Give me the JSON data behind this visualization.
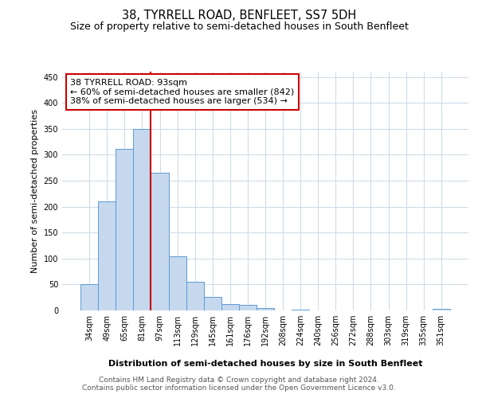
{
  "title": "38, TYRRELL ROAD, BENFLEET, SS7 5DH",
  "subtitle": "Size of property relative to semi-detached houses in South Benfleet",
  "xlabel": "Distribution of semi-detached houses by size in South Benfleet",
  "ylabel": "Number of semi-detached properties",
  "bar_labels": [
    "34sqm",
    "49sqm",
    "65sqm",
    "81sqm",
    "97sqm",
    "113sqm",
    "129sqm",
    "145sqm",
    "161sqm",
    "176sqm",
    "192sqm",
    "208sqm",
    "224sqm",
    "240sqm",
    "256sqm",
    "272sqm",
    "288sqm",
    "303sqm",
    "319sqm",
    "335sqm",
    "351sqm"
  ],
  "bar_values": [
    50,
    210,
    312,
    350,
    265,
    104,
    55,
    26,
    12,
    11,
    5,
    0,
    1,
    0,
    0,
    0,
    0,
    0,
    0,
    0,
    3
  ],
  "bar_color": "#c5d8ed",
  "bar_edge_color": "#5b9bd5",
  "vline_x": 3.5,
  "annotation_title": "38 TYRRELL ROAD: 93sqm",
  "annotation_line1": "← 60% of semi-detached houses are smaller (842)",
  "annotation_line2": "38% of semi-detached houses are larger (534) →",
  "annotation_box_color": "#ffffff",
  "annotation_box_edge": "#cc0000",
  "vline_color": "#cc0000",
  "ylim": [
    0,
    460
  ],
  "yticks": [
    0,
    50,
    100,
    150,
    200,
    250,
    300,
    350,
    400,
    450
  ],
  "footer1": "Contains HM Land Registry data © Crown copyright and database right 2024.",
  "footer2": "Contains public sector information licensed under the Open Government Licence v3.0.",
  "bg_color": "#ffffff",
  "grid_color": "#d0dce8",
  "title_fontsize": 10.5,
  "subtitle_fontsize": 9,
  "axis_label_fontsize": 8,
  "tick_fontsize": 7,
  "annotation_fontsize": 8,
  "footer_fontsize": 6.5
}
